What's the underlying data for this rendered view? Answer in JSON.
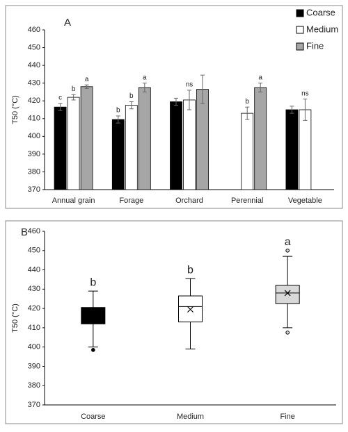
{
  "chart_data": [
    {
      "type": "bar",
      "title": "A",
      "y_label": "T50 (°C)",
      "categories": [
        "Annual grain",
        "Forage",
        "Orchard",
        "Perennial",
        "Vegetable"
      ],
      "series": [
        {
          "name": "Coarse",
          "color": "#000000",
          "values": [
            416.5,
            409.5,
            419.5,
            null,
            415
          ],
          "errors": [
            2,
            2,
            2,
            null,
            2
          ],
          "letters": [
            "c",
            "b",
            null,
            null,
            null
          ]
        },
        {
          "name": "Medium",
          "color": "#ffffff",
          "values": [
            422,
            417.5,
            420.5,
            413,
            415
          ],
          "errors": [
            1.5,
            2,
            5.5,
            3.5,
            6
          ],
          "letters": [
            "b",
            "b",
            "ns",
            "b",
            "ns"
          ]
        },
        {
          "name": "Fine",
          "color": "#a6a6a6",
          "values": [
            428,
            427.5,
            426.5,
            427.5,
            null
          ],
          "errors": [
            1,
            2.5,
            8,
            2.5,
            null
          ],
          "letters": [
            "a",
            "a",
            null,
            "a",
            null
          ]
        }
      ],
      "ylim": [
        370,
        460
      ],
      "yticks": [
        370,
        380,
        390,
        400,
        410,
        420,
        430,
        440,
        450,
        460
      ],
      "legend": "top-right"
    },
    {
      "type": "box",
      "title": "B",
      "y_label": "T50 (°C)",
      "categories": [
        "Coarse",
        "Medium",
        "Fine"
      ],
      "boxes": [
        {
          "min": 400,
          "q1": 412,
          "median": 416,
          "q3": 420.5,
          "max": 429,
          "mean": 416,
          "outliers": [
            398.5
          ],
          "letter": "b",
          "color": "#000000"
        },
        {
          "min": 399,
          "q1": 413,
          "median": 421,
          "q3": 426.5,
          "max": 435.5,
          "mean": 419.5,
          "outliers": [],
          "letter": "b",
          "color": "#ffffff"
        },
        {
          "min": 410,
          "q1": 422.5,
          "median": 428,
          "q3": 432,
          "max": 447,
          "mean": 428,
          "outliers": [
            450,
            407.5
          ],
          "letter": "a",
          "color": "#d9d9d9"
        }
      ],
      "ylim": [
        370,
        460
      ],
      "yticks": [
        370,
        380,
        390,
        400,
        410,
        420,
        430,
        440,
        450,
        460
      ]
    }
  ]
}
